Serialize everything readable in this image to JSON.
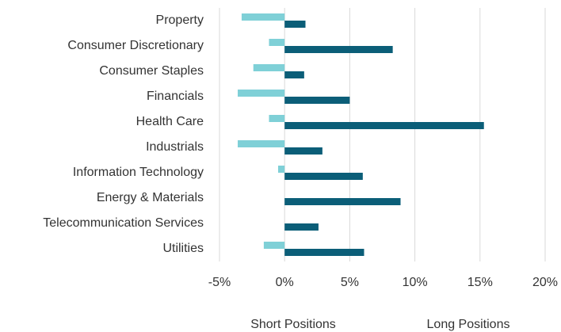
{
  "chart_data": {
    "type": "bar",
    "orientation": "horizontal",
    "categories": [
      "Property",
      "Consumer Discretionary",
      "Consumer Staples",
      "Financials",
      "Health Care",
      "Industrials",
      "Information Technology",
      "Energy & Materials",
      "Telecommunication Services",
      "Utilities"
    ],
    "series": [
      {
        "name": "Short Positions",
        "color": "#7fd0d7",
        "values": [
          -3.3,
          -1.2,
          -2.4,
          -3.6,
          -1.2,
          -3.6,
          -0.5,
          null,
          null,
          -1.6
        ]
      },
      {
        "name": "Long Positions",
        "color": "#0b5e78",
        "values": [
          1.6,
          8.3,
          1.5,
          5.0,
          15.3,
          2.9,
          6.0,
          8.9,
          2.6,
          6.1
        ]
      }
    ],
    "xlim": [
      -5,
      20
    ],
    "xticks": [
      {
        "value": -5,
        "label": "-5%"
      },
      {
        "value": 0,
        "label": "0%"
      },
      {
        "value": 5,
        "label": "5%"
      },
      {
        "value": 10,
        "label": "10%"
      },
      {
        "value": 15,
        "label": "15%"
      },
      {
        "value": 20,
        "label": "20%"
      }
    ],
    "grid": true,
    "legend": "bottom"
  }
}
